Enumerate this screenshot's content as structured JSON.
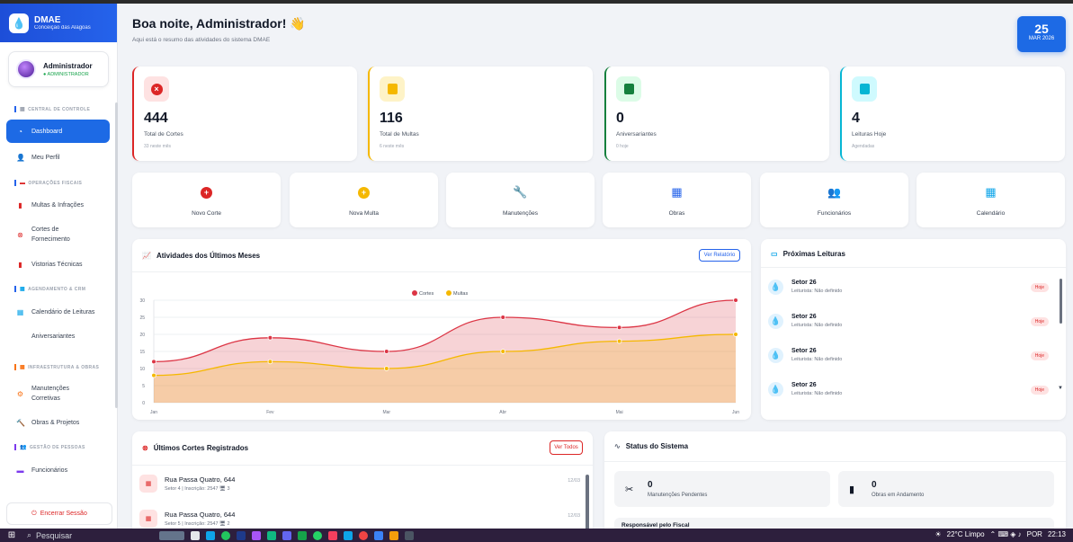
{
  "brand": {
    "title": "DMAE",
    "subtitle": "Conceição das Alagoas"
  },
  "user": {
    "name": "Administrador",
    "role": "● ADMINISTRADOR"
  },
  "sidebar": {
    "sections": [
      {
        "title": "CENTRAL DE CONTROLE"
      },
      {
        "title": "OPERAÇÕES FISCAIS"
      },
      {
        "title": "AGENDAMENTO & CRM"
      },
      {
        "title": "INFRAESTRUTURA & OBRAS"
      },
      {
        "title": "GESTÃO DE PESSOAS"
      }
    ],
    "items": [
      {
        "label": "Dashboard"
      },
      {
        "label": "Meu Perfil"
      },
      {
        "label": "Multas & Infrações"
      },
      {
        "label": "Cortes de Fornecimento"
      },
      {
        "label": "Vistorias Técnicas"
      },
      {
        "label": "Calendário de Leituras"
      },
      {
        "label": "Aniversariantes"
      },
      {
        "label": "Manutenções Corretivas"
      },
      {
        "label": "Obras & Projetos"
      },
      {
        "label": "Funcionários"
      }
    ],
    "logout": "Encerrar Sessão"
  },
  "header": {
    "greeting": "Boa noite, Administrador! 👋",
    "subtitle": "Aqui está o resumo das atividades do sistema DMAE",
    "date_day": "25",
    "date_month": "MAR 2026"
  },
  "stats": [
    {
      "value": "444",
      "label": "Total de Cortes",
      "sub": "33 neste mês",
      "color": "#dc2626"
    },
    {
      "value": "116",
      "label": "Total de Multas",
      "sub": "6 neste mês",
      "color": "#f5b800"
    },
    {
      "value": "0",
      "label": "Aniversariantes",
      "sub": "0 hoje",
      "color": "#15803d"
    },
    {
      "value": "4",
      "label": "Leituras Hoje",
      "sub": "Agendadas",
      "color": "#06b6d4"
    }
  ],
  "actions": [
    {
      "label": "Novo Corte"
    },
    {
      "label": "Nova Multa"
    },
    {
      "label": "Manutenções"
    },
    {
      "label": "Obras"
    },
    {
      "label": "Funcionários"
    },
    {
      "label": "Calendário"
    }
  ],
  "activity": {
    "title": "Atividades dos Últimos Meses",
    "button": "Ver Relatório"
  },
  "chart_data": {
    "type": "area",
    "categories": [
      "Jan",
      "Fev",
      "Mar",
      "Abr",
      "Mai",
      "Jun"
    ],
    "series": [
      {
        "name": "Cortes",
        "values": [
          12,
          19,
          15,
          25,
          22,
          30
        ],
        "color": "#dc3545"
      },
      {
        "name": "Multas",
        "values": [
          8,
          12,
          10,
          15,
          18,
          20
        ],
        "color": "#f5b800"
      }
    ],
    "yticks": [
      "0",
      "5",
      "10",
      "15",
      "20",
      "25",
      "30"
    ],
    "ylim": [
      0,
      30
    ],
    "grid": true,
    "legend": "top-center"
  },
  "readings": {
    "title": "Próximas Leituras",
    "items": [
      {
        "title": "Setor 26",
        "sub": "Leiturista: Não definido",
        "badge": "Hoje"
      },
      {
        "title": "Setor 26",
        "sub": "Leiturista: Não definido",
        "badge": "Hoje"
      },
      {
        "title": "Setor 26",
        "sub": "Leiturista: Não definido",
        "badge": "Hoje"
      },
      {
        "title": "Setor 26",
        "sub": "Leiturista: Não definido",
        "badge": "Hoje"
      }
    ]
  },
  "cortes": {
    "title": "Últimos Cortes Registrados",
    "button": "Ver Todos",
    "items": [
      {
        "title": "Rua Passa Quatro, 644",
        "sub": "Setor 4 | Inscrição: 2547 🖥 3",
        "date": "12/03"
      },
      {
        "title": "Rua Passa Quatro, 644",
        "sub": "Setor 5 | Inscrição: 2547 🖥 2",
        "date": "12/03"
      }
    ]
  },
  "system": {
    "title": "Status do Sistema",
    "boxes": [
      {
        "value": "0",
        "label": "Manutenções Pendentes"
      },
      {
        "value": "0",
        "label": "Obras em Andamento"
      }
    ],
    "fiscal": "Responsável pelo Fiscal"
  },
  "taskbar": {
    "search": "Pesquisar",
    "weather": "22°C  Limpo",
    "lang": "POR",
    "time": "22:13"
  }
}
